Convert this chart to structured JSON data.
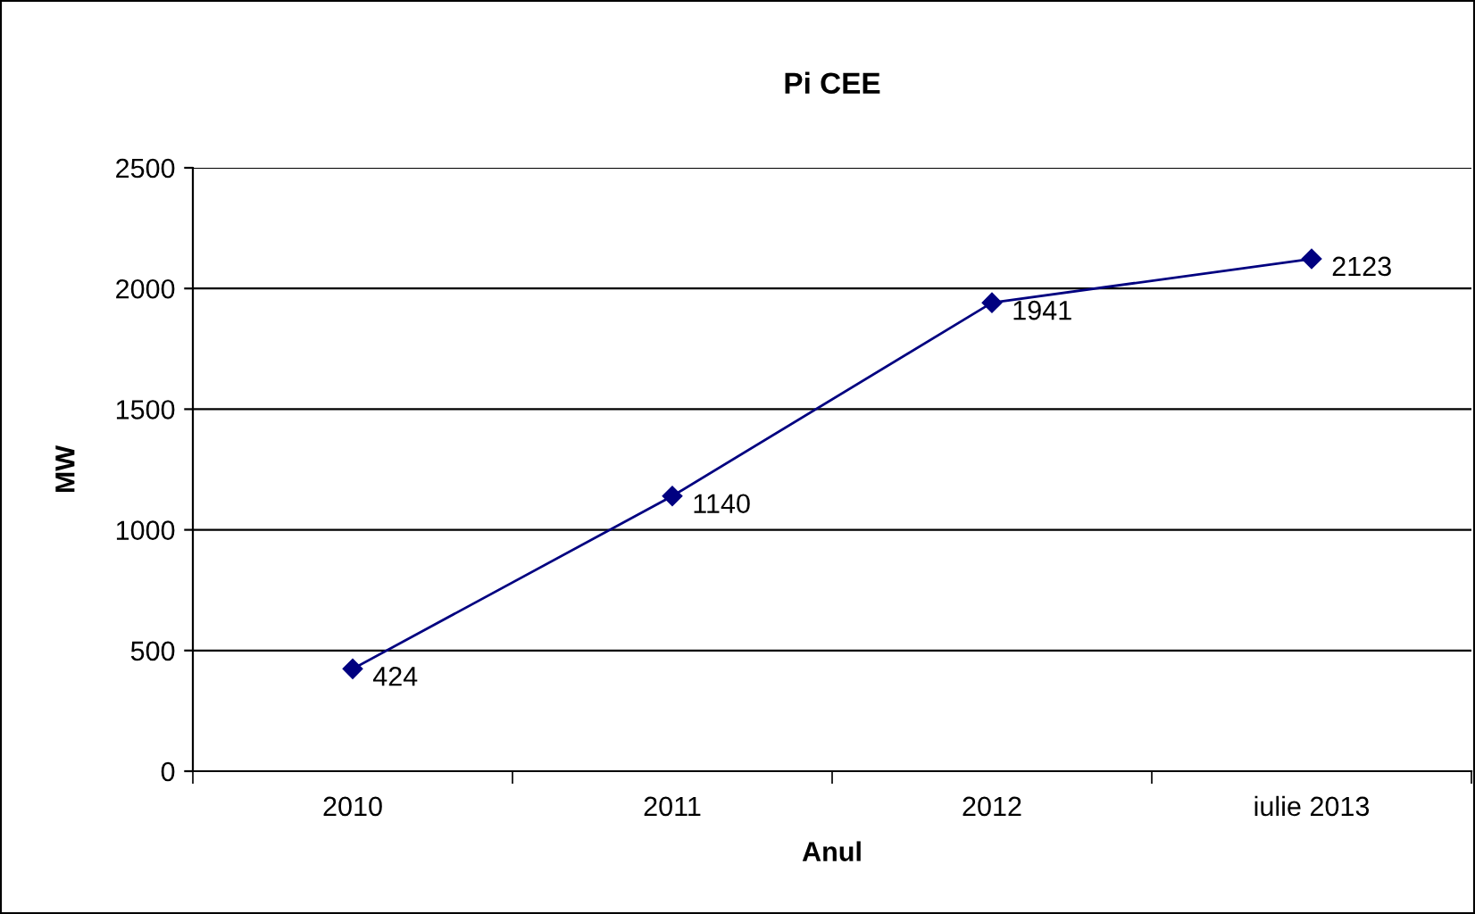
{
  "chart_data": {
    "type": "line",
    "title": "Pi CEE",
    "xlabel": "Anul",
    "ylabel": "MW",
    "categories": [
      "2010",
      "2011",
      "2012",
      "iulie 2013"
    ],
    "series": [
      {
        "color": "#000080",
        "values": [
          424,
          1140,
          1941,
          2123
        ]
      }
    ],
    "ylim": [
      0,
      2500
    ],
    "yticks": [
      0,
      500,
      1000,
      1500,
      2000,
      2500
    ],
    "grid": "y",
    "marker": "diamond",
    "line_style": "solid",
    "data_labels": true,
    "legend": false
  }
}
